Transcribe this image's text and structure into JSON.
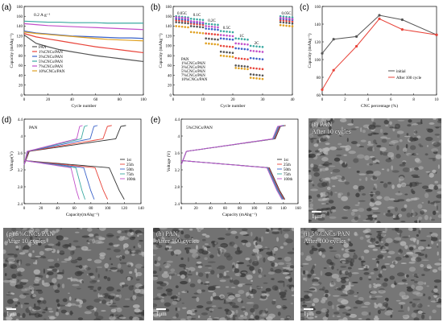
{
  "labels": {
    "a": "(a)",
    "b": "(b)",
    "c": "(c)",
    "d": "(d)",
    "e": "(e)",
    "f": "(f)",
    "g": "(g)",
    "h": "(h)",
    "i": "(i)"
  },
  "panel_a": {
    "rate": "0.2 A g⁻¹",
    "xlabel": "Cycle number",
    "ylabel": "Capacity (mAhg⁻¹)",
    "legend": [
      "PAN",
      "1%CNCs/PAN",
      "3%CNCs/PAN",
      "5%CNCs/PAN",
      "7%CNCs/PAN",
      "10%CNCs/PAN"
    ],
    "colors": [
      "#555555",
      "#e8443a",
      "#3a62c9",
      "#3aa9a1",
      "#c24fc9",
      "#e0a020"
    ]
  },
  "panel_b": {
    "xlabel": "Cycle number",
    "ylabel": "Capacity (mAhg⁻¹)",
    "rates": [
      "0.05C",
      "0.1C",
      "0.2C",
      "0.5C",
      "1C",
      "2C",
      "0.05C"
    ],
    "legend": [
      "PAN",
      "1%CNCs/PAN",
      "3%CNCs/PAN",
      "5%CNCs/PAN",
      "7%CNCs/PAN",
      "10%CNCs/PAN"
    ]
  },
  "panel_d": {
    "title": "PAN",
    "xlabel": "Capacity(mAhg⁻¹)",
    "ylabel": "Voltage(V)",
    "legend": [
      "1st",
      "25th",
      "50th",
      "75th",
      "100th"
    ],
    "colors": [
      "#333333",
      "#e8443a",
      "#3a62c9",
      "#3aa9a1",
      "#c24fc9"
    ]
  },
  "panel_e": {
    "title": "5%CNCs/PAN",
    "xlabel": "Capacity (mAhg⁻¹)",
    "ylabel": "Voltage (V)",
    "legend": [
      "1st",
      "25th",
      "50th",
      "75th",
      "100th"
    ]
  },
  "sem": {
    "f": {
      "line1": "(f) PAN",
      "line2": "After 10 cycles",
      "scale": "1μm"
    },
    "g": {
      "line1": "(g) 5%CNCs/PAN",
      "line2": "After 10 cycles",
      "scale": "1μm"
    },
    "h": {
      "line1": "(h) PAN",
      "line2": "After 100 cycles",
      "scale": "1μm"
    },
    "i": {
      "line1": "(i) 5%CNCs/PAN",
      "line2": "After 100 cycles",
      "scale": "1μm"
    }
  },
  "chart_data": [
    {
      "type": "line",
      "panel": "a",
      "xlabel": "Cycle number",
      "ylabel": "Capacity (mAhg⁻¹)",
      "xlim": [
        0,
        100
      ],
      "ylim": [
        0,
        180
      ],
      "xticks": [
        0,
        20,
        40,
        60,
        80,
        100
      ],
      "yticks": [
        0,
        20,
        40,
        60,
        80,
        100,
        120,
        140,
        160,
        180
      ],
      "x": [
        0,
        10,
        20,
        30,
        40,
        50,
        60,
        70,
        80,
        90,
        100
      ],
      "series": [
        {
          "name": "PAN",
          "values": [
            122,
            105,
            98,
            92,
            88,
            84,
            80,
            77,
            74,
            71,
            68
          ]
        },
        {
          "name": "1%CNCs/PAN",
          "values": [
            125,
            118,
            114,
            110,
            106,
            102,
            98,
            95,
            92,
            89,
            86
          ]
        },
        {
          "name": "3%CNCs/PAN",
          "values": [
            130,
            126,
            124,
            122,
            120,
            119,
            118,
            117,
            116,
            116,
            115
          ]
        },
        {
          "name": "5%CNCs/PAN",
          "values": [
            150,
            149,
            148,
            148,
            147,
            147,
            147,
            146,
            146,
            146,
            146
          ]
        },
        {
          "name": "7%CNCs/PAN",
          "values": [
            145,
            143,
            141,
            140,
            139,
            138,
            137,
            136,
            135,
            134,
            133
          ]
        },
        {
          "name": "10%CNCs/PAN",
          "values": [
            128,
            125,
            123,
            121,
            119,
            117,
            115,
            113,
            112,
            111,
            110
          ]
        }
      ]
    },
    {
      "type": "scatter",
      "panel": "b",
      "xlabel": "Cycle number",
      "ylabel": "Capacity (mAhg⁻¹)",
      "xlim": [
        0,
        40
      ],
      "ylim": [
        0,
        180
      ],
      "xticks": [
        0,
        10,
        20,
        30,
        40
      ],
      "yticks": [
        0,
        20,
        40,
        60,
        80,
        100,
        120,
        140,
        160,
        180
      ],
      "segments": [
        [
          1,
          5
        ],
        [
          6,
          10
        ],
        [
          11,
          15
        ],
        [
          16,
          20
        ],
        [
          21,
          25
        ],
        [
          26,
          30
        ],
        [
          36,
          40
        ]
      ],
      "series": [
        {
          "name": "PAN",
          "values": [
            148,
            140,
            115,
            88,
            60,
            42,
            148
          ]
        },
        {
          "name": "1%CNCs/PAN",
          "values": [
            152,
            145,
            125,
            100,
            75,
            55,
            152
          ]
        },
        {
          "name": "3%CNCs/PAN",
          "values": [
            155,
            148,
            135,
            115,
            95,
            75,
            155
          ]
        },
        {
          "name": "5%CNCs/PAN",
          "values": [
            160,
            155,
            145,
            130,
            115,
            100,
            160
          ]
        },
        {
          "name": "7%CNCs/PAN",
          "values": [
            158,
            150,
            140,
            122,
            105,
            90,
            157
          ]
        },
        {
          "name": "10%CNCs/PAN",
          "values": [
            140,
            128,
            105,
            80,
            55,
            35,
            142
          ]
        }
      ]
    },
    {
      "type": "line",
      "panel": "c",
      "xlabel": "CNC percentage (%)",
      "ylabel": "Capacity (mAhg⁻¹)",
      "xlim": [
        0,
        10
      ],
      "ylim": [
        60,
        160
      ],
      "xticks": [
        0,
        2,
        4,
        6,
        8,
        10
      ],
      "yticks": [
        60,
        80,
        100,
        120,
        140,
        160
      ],
      "legend_position": "bottom-right",
      "series": [
        {
          "name": "initial",
          "x": [
            0,
            1,
            3,
            5,
            7,
            10
          ],
          "values": [
            107,
            123,
            126,
            150,
            145,
            128
          ]
        },
        {
          "name": "After 100 cycle",
          "x": [
            0,
            1,
            3,
            5,
            7,
            10
          ],
          "values": [
            66,
            88,
            115,
            146,
            134,
            128
          ]
        }
      ]
    },
    {
      "type": "line",
      "panel": "d",
      "xlabel": "Capacity(mAhg⁻¹)",
      "ylabel": "Voltage(V)",
      "xlim": [
        0,
        140
      ],
      "ylim": [
        2.4,
        4.4
      ],
      "xticks": [
        0,
        20,
        40,
        60,
        80,
        100,
        120,
        140
      ],
      "yticks": [
        2.4,
        2.8,
        3.2,
        3.6,
        4.0,
        4.4
      ],
      "series": [
        {
          "name": "1st",
          "charge_end": 122,
          "discharge_end": 120
        },
        {
          "name": "25th",
          "charge_end": 105,
          "discharge_end": 100
        },
        {
          "name": "50th",
          "charge_end": 88,
          "discharge_end": 84
        },
        {
          "name": "75th",
          "charge_end": 76,
          "discharge_end": 73
        },
        {
          "name": "100th",
          "charge_end": 70,
          "discharge_end": 66
        }
      ]
    },
    {
      "type": "line",
      "panel": "e",
      "xlabel": "Capacity (mAhg⁻¹)",
      "ylabel": "Voltage (V)",
      "xlim": [
        0,
        160
      ],
      "ylim": [
        2.4,
        4.4
      ],
      "xticks": [
        0,
        20,
        40,
        60,
        80,
        100,
        120,
        140,
        160
      ],
      "yticks": [
        2.4,
        2.8,
        3.2,
        3.6,
        4.0,
        4.4
      ],
      "series": [
        {
          "name": "1st",
          "charge_end": 143,
          "discharge_end": 142
        },
        {
          "name": "25th",
          "charge_end": 142,
          "discharge_end": 141
        },
        {
          "name": "50th",
          "charge_end": 141,
          "discharge_end": 140
        },
        {
          "name": "75th",
          "charge_end": 140,
          "discharge_end": 139
        },
        {
          "name": "100th",
          "charge_end": 139,
          "discharge_end": 138
        }
      ]
    }
  ]
}
